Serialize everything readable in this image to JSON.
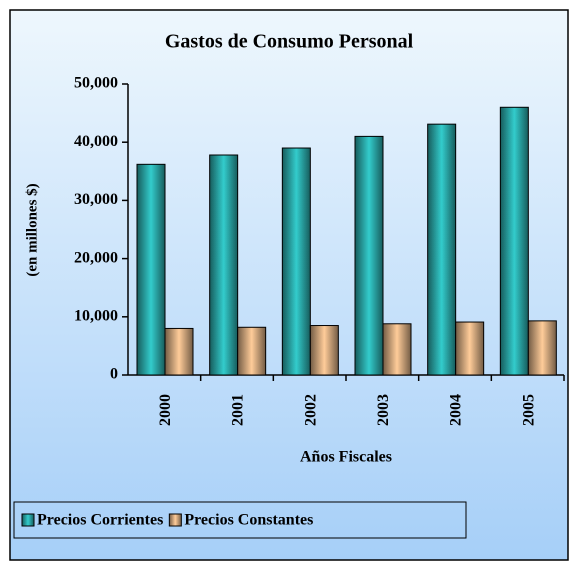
{
  "chart_data": {
    "type": "bar",
    "title": "Gastos de Consumo Personal",
    "x_label": "Años Fiscales",
    "y_label": "(en millones $)",
    "categories": [
      "2000",
      "2001",
      "2002",
      "2003",
      "2004",
      "2005"
    ],
    "series": [
      {
        "name": "Precios Corrientes",
        "color": "#33cccc",
        "values": [
          36200,
          37800,
          39000,
          41000,
          43100,
          46000
        ]
      },
      {
        "name": "Precios Constantes",
        "color": "#ffcc99",
        "values": [
          8000,
          8200,
          8500,
          8800,
          9100,
          9300
        ]
      }
    ],
    "ylim": [
      0,
      50000
    ],
    "yticks": [
      0,
      {
        "value": 10000,
        "label": "10,000"
      },
      {
        "value": 20000,
        "label": "20,000"
      },
      {
        "value": 30000,
        "label": "30,000"
      },
      {
        "value": 40000,
        "label": "40,000"
      },
      {
        "value": 50000,
        "label": "50,000"
      }
    ],
    "legend": "bottom"
  }
}
